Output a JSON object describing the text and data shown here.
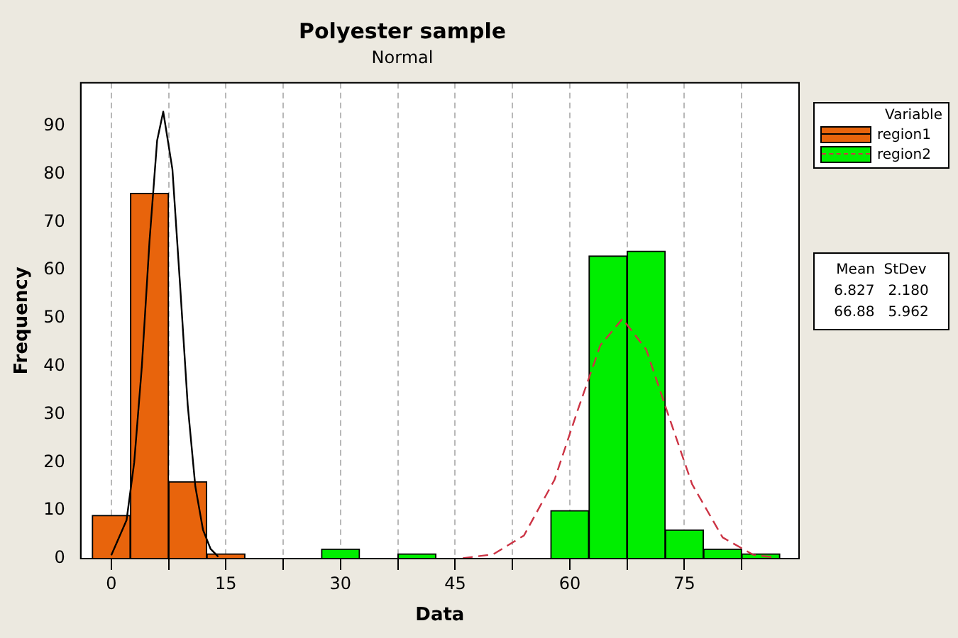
{
  "chart_data": {
    "type": "histogram",
    "title": "Polyester sample",
    "subtitle": "Normal",
    "xlabel": "Data",
    "ylabel": "Frequency",
    "legend_title": "Variable",
    "legend": "top right",
    "grid": "x",
    "marker": "none",
    "xlim": [
      -4,
      90
    ],
    "xticks": [
      0,
      {
        "value": 7.5,
        "label": null
      },
      15,
      {
        "value": 22.5,
        "label": null
      },
      30,
      {
        "value": 37.5,
        "label": null
      },
      45,
      {
        "value": 52.5,
        "label": null
      },
      60,
      {
        "value": 67.5,
        "label": null
      },
      75,
      {
        "value": 82.5,
        "label": null
      }
    ],
    "ylim": [
      0,
      99
    ],
    "yticks": [
      0,
      10,
      20,
      30,
      40,
      50,
      60,
      70,
      80,
      90
    ],
    "series": [
      {
        "name": "region1",
        "color": "#e8640c",
        "bins": [
          -2.5,
          2.5,
          7.5,
          12.5,
          17.5
        ],
        "values": [
          9,
          76,
          16,
          1
        ]
      },
      {
        "name": "region2",
        "color": "#00ee00",
        "bins": [
          27.5,
          32.5,
          37.5,
          42.5,
          47.5,
          52.5,
          57.5,
          62.5,
          67.5,
          72.5,
          77.5,
          82.5,
          87.5
        ],
        "values": [
          2,
          0,
          1,
          0,
          0,
          0,
          10,
          63,
          64,
          6,
          2,
          1
        ]
      },
      {
        "type": "line",
        "color": "#000000",
        "line_style": "solid",
        "x": [
          0,
          2,
          3,
          4,
          5,
          6,
          6.8,
          8,
          9,
          10,
          11,
          12,
          13,
          14
        ],
        "values": [
          0.7,
          8,
          20,
          40,
          66,
          87,
          93,
          81,
          57,
          32,
          15,
          6,
          2,
          0.4
        ]
      },
      {
        "type": "line",
        "color": "#cc3344",
        "line_style": "dashed",
        "x": [
          46,
          50,
          54,
          58,
          61,
          64,
          66.9,
          70,
          73,
          76,
          80,
          84,
          87
        ],
        "values": [
          0.1,
          0.9,
          4.8,
          16.4,
          30.7,
          44.4,
          49.9,
          43.5,
          29.4,
          15.5,
          4.4,
          0.8,
          0.2
        ]
      }
    ],
    "annotations": [
      "Mean  StDev",
      "6.827   2.180",
      "66.88   5.962"
    ]
  }
}
